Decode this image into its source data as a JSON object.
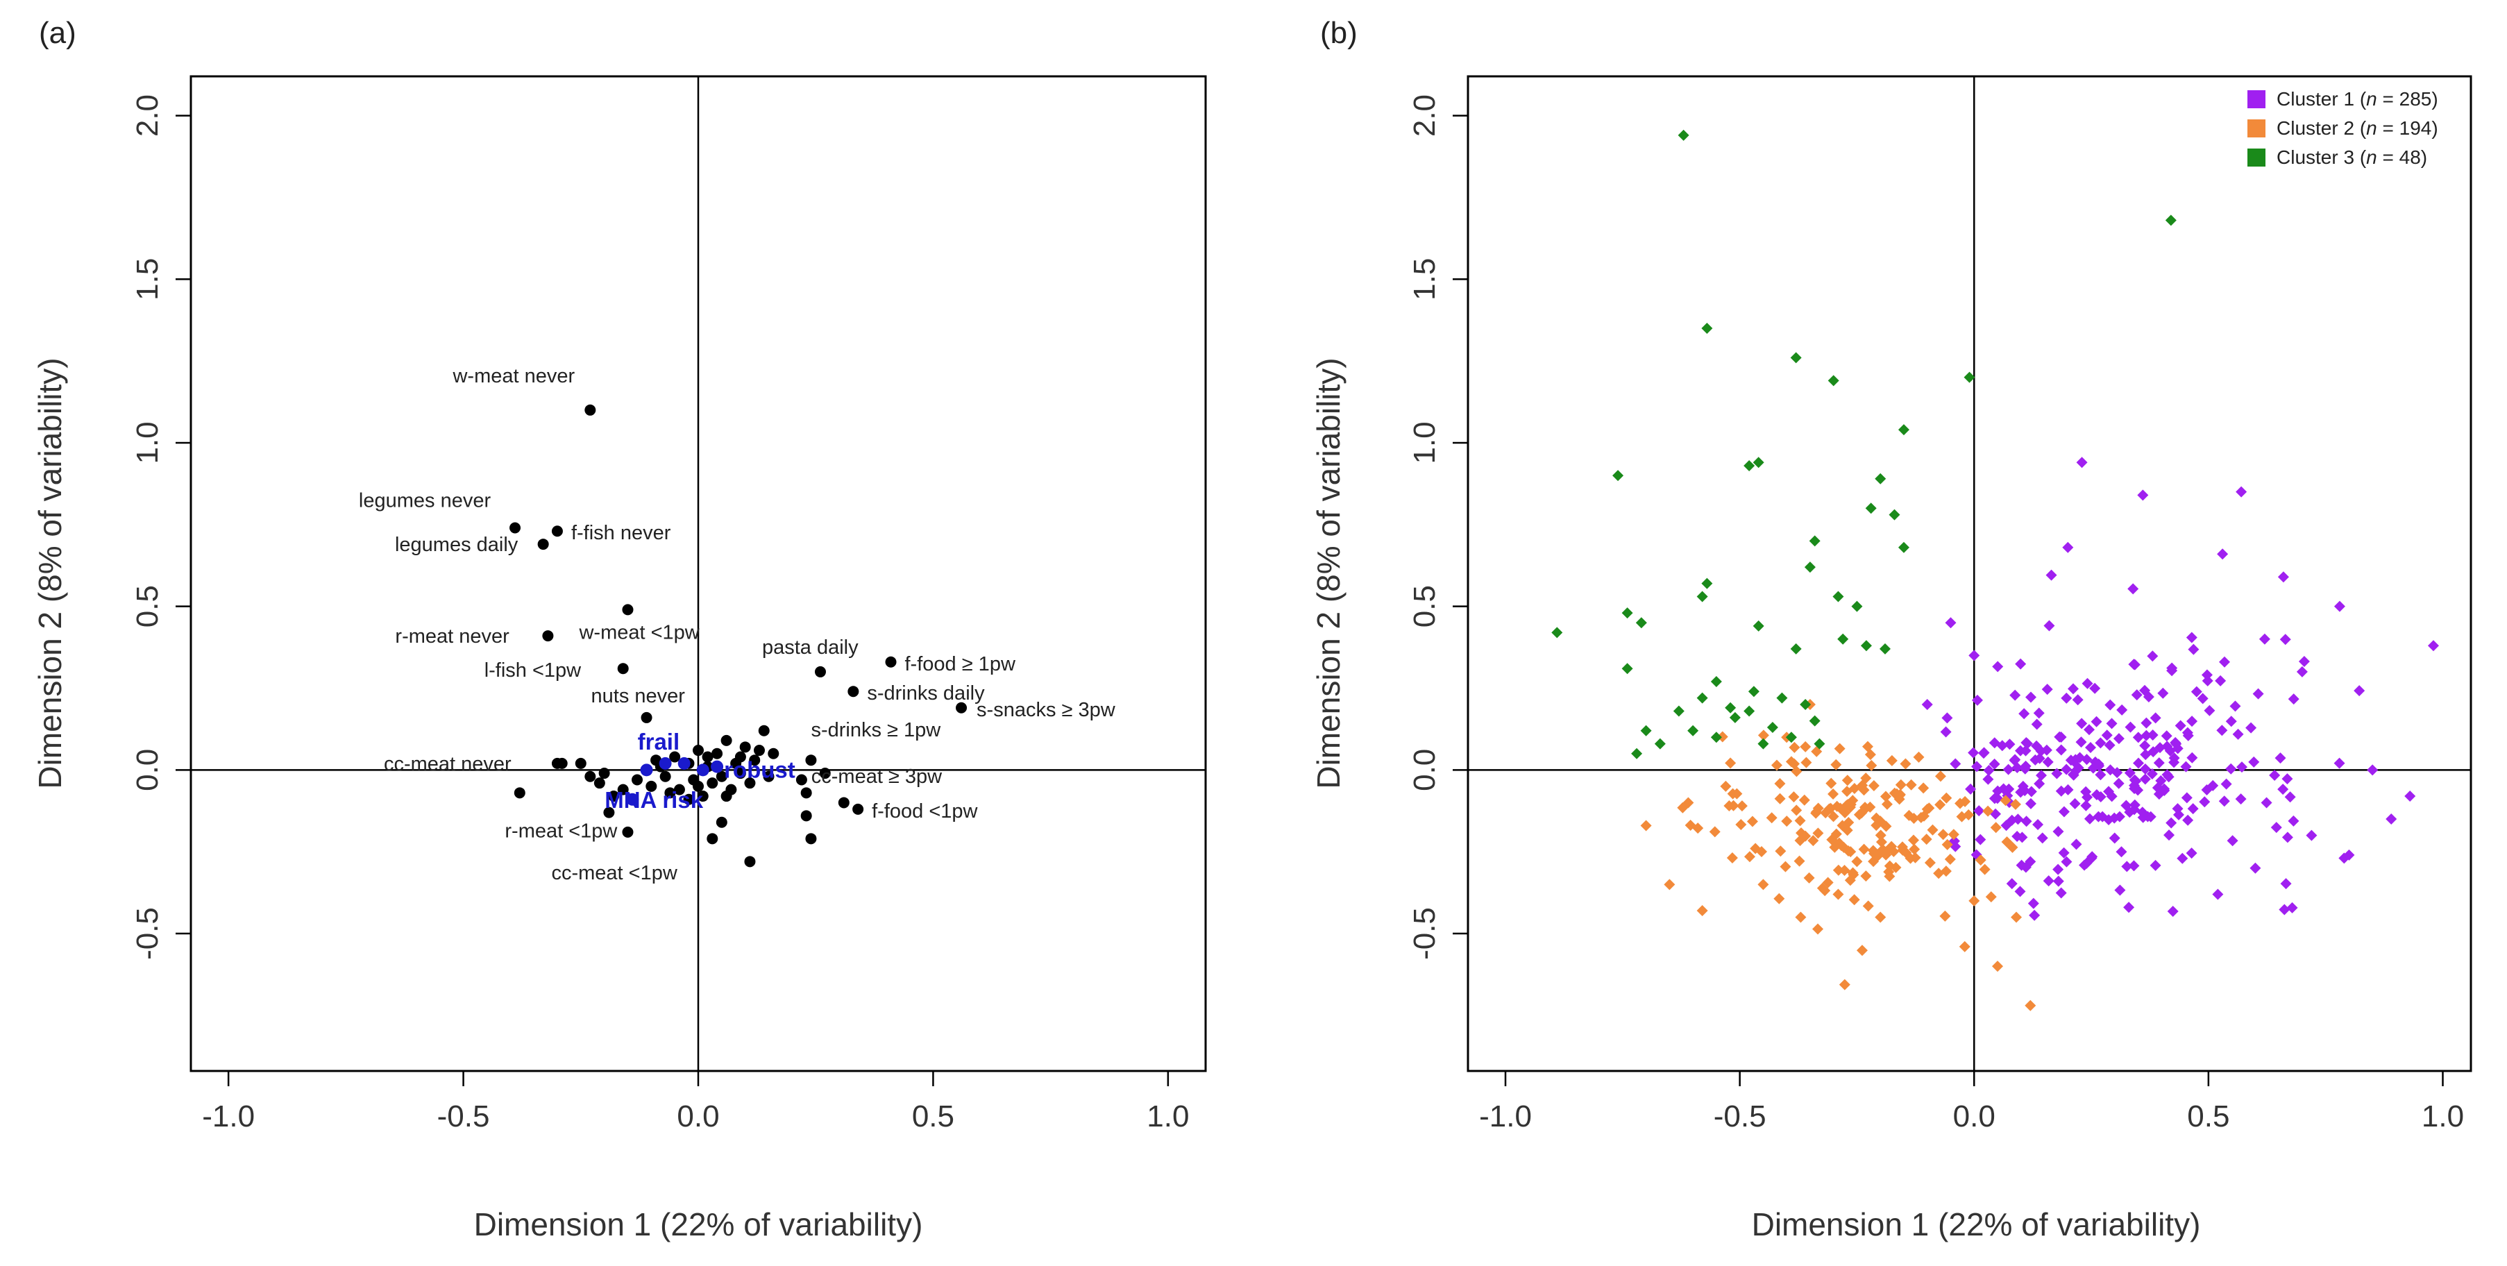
{
  "chart_data": [
    {
      "type": "scatter",
      "panel_label": "(a)",
      "xlabel": "Dimension 1 (22% of variability)",
      "ylabel": "Dimension 2 (8% of variability)",
      "xlim": [
        -1.08,
        1.08
      ],
      "ylim": [
        -0.92,
        2.12
      ],
      "x_ticks": [
        -1.0,
        -0.5,
        0.0,
        0.5,
        1.0
      ],
      "x_tick_labels": [
        "-1.0",
        "-0.5",
        "0.0",
        "0.5",
        "1.0"
      ],
      "y_ticks": [
        -0.5,
        0.0,
        0.5,
        1.0,
        1.5,
        2.0
      ],
      "y_tick_labels": [
        "-0.5",
        "0.0",
        "0.5",
        "1.0",
        "1.5",
        "2.0"
      ],
      "reference_lines": {
        "x": 0,
        "y": 0
      },
      "labeled_points": [
        {
          "label": "w-meat never",
          "x": -0.23,
          "y": 1.1
        },
        {
          "label": "legumes never",
          "x": -0.39,
          "y": 0.74
        },
        {
          "label": "legumes daily",
          "x": -0.33,
          "y": 0.69
        },
        {
          "label": "f-fish never",
          "x": -0.3,
          "y": 0.73
        },
        {
          "label": "w-meat <1pw",
          "x": -0.15,
          "y": 0.49
        },
        {
          "label": "r-meat never",
          "x": -0.32,
          "y": 0.41
        },
        {
          "label": "l-fish <1pw",
          "x": -0.16,
          "y": 0.31
        },
        {
          "label": "nuts never",
          "x": -0.11,
          "y": 0.16
        },
        {
          "label": "pasta daily",
          "x": 0.26,
          "y": 0.3
        },
        {
          "label": "f-food ≥ 1pw",
          "x": 0.41,
          "y": 0.33
        },
        {
          "label": "s-drinks daily",
          "x": 0.33,
          "y": 0.24
        },
        {
          "label": "s-snacks ≥ 3pw",
          "x": 0.56,
          "y": 0.19
        },
        {
          "label": "s-drinks ≥ 1pw",
          "x": 0.24,
          "y": 0.03
        },
        {
          "label": "cc-meat ≥ 3pw",
          "x": 0.27,
          "y": -0.01
        },
        {
          "label": "f-food <1pw",
          "x": 0.34,
          "y": -0.12
        },
        {
          "label": "cc-meat never",
          "x": -0.3,
          "y": 0.02
        },
        {
          "label": "r-meat <1pw",
          "x": -0.19,
          "y": -0.13
        },
        {
          "label": "cc-meat <1pw",
          "x": -0.15,
          "y": -0.19
        }
      ],
      "highlight_points": [
        {
          "label": "frail",
          "x": -0.07,
          "y": 0.02
        },
        {
          "label": "robust",
          "x": 0.04,
          "y": 0.01
        },
        {
          "label": "MNA risk",
          "x": -0.14,
          "y": -0.09
        },
        {
          "label": "",
          "x": -0.11,
          "y": 0.0
        },
        {
          "label": "",
          "x": -0.03,
          "y": 0.02
        },
        {
          "label": "",
          "x": 0.01,
          "y": 0.0
        }
      ],
      "other_points": [
        {
          "x": -0.38,
          "y": -0.07
        },
        {
          "x": -0.29,
          "y": 0.02
        },
        {
          "x": -0.25,
          "y": 0.02
        },
        {
          "x": -0.23,
          "y": -0.02
        },
        {
          "x": -0.21,
          "y": -0.04
        },
        {
          "x": -0.2,
          "y": -0.01
        },
        {
          "x": -0.18,
          "y": -0.08
        },
        {
          "x": -0.16,
          "y": -0.06
        },
        {
          "x": -0.13,
          "y": -0.03
        },
        {
          "x": -0.1,
          "y": -0.05
        },
        {
          "x": -0.09,
          "y": 0.03
        },
        {
          "x": -0.07,
          "y": -0.02
        },
        {
          "x": -0.05,
          "y": 0.04
        },
        {
          "x": -0.04,
          "y": -0.06
        },
        {
          "x": -0.02,
          "y": 0.02
        },
        {
          "x": -0.01,
          "y": -0.03
        },
        {
          "x": 0.0,
          "y": 0.06
        },
        {
          "x": 0.01,
          "y": -0.08
        },
        {
          "x": 0.02,
          "y": 0.01
        },
        {
          "x": 0.03,
          "y": -0.04
        },
        {
          "x": 0.04,
          "y": 0.05
        },
        {
          "x": 0.05,
          "y": -0.02
        },
        {
          "x": 0.06,
          "y": 0.09
        },
        {
          "x": 0.07,
          "y": -0.06
        },
        {
          "x": 0.08,
          "y": 0.02
        },
        {
          "x": 0.09,
          "y": -0.01
        },
        {
          "x": 0.1,
          "y": 0.07
        },
        {
          "x": 0.11,
          "y": -0.04
        },
        {
          "x": 0.12,
          "y": 0.03
        },
        {
          "x": 0.13,
          "y": 0.06
        },
        {
          "x": 0.14,
          "y": 0.12
        },
        {
          "x": 0.15,
          "y": -0.02
        },
        {
          "x": 0.16,
          "y": 0.05
        },
        {
          "x": 0.03,
          "y": -0.21
        },
        {
          "x": 0.05,
          "y": -0.16
        },
        {
          "x": 0.11,
          "y": -0.28
        },
        {
          "x": 0.23,
          "y": -0.07
        },
        {
          "x": 0.23,
          "y": -0.14
        },
        {
          "x": 0.24,
          "y": -0.21
        },
        {
          "x": 0.31,
          "y": -0.1
        },
        {
          "x": 0.22,
          "y": -0.03
        },
        {
          "x": -0.06,
          "y": -0.07
        },
        {
          "x": -0.02,
          "y": -0.09
        },
        {
          "x": 0.0,
          "y": -0.05
        },
        {
          "x": 0.02,
          "y": 0.04
        },
        {
          "x": -0.08,
          "y": 0.01
        },
        {
          "x": 0.06,
          "y": -0.08
        },
        {
          "x": 0.09,
          "y": 0.04
        }
      ]
    },
    {
      "type": "scatter",
      "panel_label": "(b)",
      "xlabel": "Dimension 1 (22% of variability)",
      "ylabel": "Dimension 2 (8% of variability)",
      "xlim": [
        -1.08,
        1.06
      ],
      "ylim": [
        -0.92,
        2.12
      ],
      "x_ticks": [
        -1.0,
        -0.5,
        0.0,
        0.5,
        1.0
      ],
      "x_tick_labels": [
        "-1.0",
        "-0.5",
        "0.0",
        "0.5",
        "1.0"
      ],
      "y_ticks": [
        -0.5,
        0.0,
        0.5,
        1.0,
        1.5,
        2.0
      ],
      "y_tick_labels": [
        "-0.5",
        "0.0",
        "0.5",
        "1.0",
        "1.5",
        "2.0"
      ],
      "reference_lines": {
        "x": 0,
        "y": 0
      },
      "legend_position": "top-right",
      "series": [
        {
          "name": "Cluster 1",
          "legend_prefix": "Cluster 1 (",
          "legend_n_label": "n",
          "legend_suffix": " = 285)",
          "color": "#a020f0",
          "count": 285,
          "x_range": [
            -0.12,
            0.98
          ],
          "y_range": [
            -0.45,
            0.95
          ],
          "points": [
            {
              "x": 0.98,
              "y": 0.38
            },
            {
              "x": 0.78,
              "y": 0.5
            },
            {
              "x": 0.57,
              "y": 0.85
            },
            {
              "x": 0.23,
              "y": 0.94
            },
            {
              "x": 0.2,
              "y": 0.68
            },
            {
              "x": 0.36,
              "y": 0.84
            },
            {
              "x": 0.66,
              "y": 0.59
            },
            {
              "x": 0.53,
              "y": 0.66
            },
            {
              "x": 0.93,
              "y": -0.08
            },
            {
              "x": 0.89,
              "y": -0.15
            },
            {
              "x": 0.8,
              "y": -0.26
            },
            {
              "x": 0.72,
              "y": -0.2
            },
            {
              "x": 0.6,
              "y": -0.3
            },
            {
              "x": 0.52,
              "y": -0.38
            },
            {
              "x": 0.33,
              "y": -0.42
            },
            {
              "x": 0.18,
              "y": -0.34
            },
            {
              "x": 0.12,
              "y": -0.28
            },
            {
              "x": 0.85,
              "y": 0.0
            },
            {
              "x": 0.7,
              "y": 0.3
            },
            {
              "x": 0.62,
              "y": 0.4
            },
            {
              "x": -0.05,
              "y": 0.45
            },
            {
              "x": 0.0,
              "y": 0.35
            },
            {
              "x": -0.1,
              "y": 0.2
            }
          ]
        },
        {
          "name": "Cluster 2",
          "legend_prefix": "Cluster 2 (",
          "legend_n_label": "n",
          "legend_suffix": " = 194)",
          "color": "#f28a3a",
          "count": 194,
          "x_range": [
            -0.72,
            0.25
          ],
          "y_range": [
            -0.72,
            0.25
          ],
          "points": [
            {
              "x": 0.12,
              "y": -0.72
            },
            {
              "x": 0.05,
              "y": -0.6
            },
            {
              "x": -0.02,
              "y": -0.54
            },
            {
              "x": -0.58,
              "y": -0.43
            },
            {
              "x": -0.65,
              "y": -0.35
            },
            {
              "x": -0.7,
              "y": -0.17
            },
            {
              "x": -0.61,
              "y": -0.1
            },
            {
              "x": -0.53,
              "y": -0.05
            },
            {
              "x": -0.45,
              "y": -0.35
            },
            {
              "x": -0.37,
              "y": -0.45
            },
            {
              "x": -0.29,
              "y": -0.38
            },
            {
              "x": -0.35,
              "y": 0.2
            },
            {
              "x": -0.4,
              "y": 0.1
            },
            {
              "x": -0.2,
              "y": -0.45
            },
            {
              "x": 0.0,
              "y": -0.4
            },
            {
              "x": 0.09,
              "y": -0.45
            },
            {
              "x": -0.1,
              "y": -0.12
            },
            {
              "x": 0.07,
              "y": -0.22
            }
          ]
        },
        {
          "name": "Cluster 3",
          "legend_prefix": "Cluster 3 (",
          "legend_n_label": "n",
          "legend_suffix": " = 48)",
          "color": "#1a8a1a",
          "count": 48,
          "x_range": [
            -0.89,
            0.42
          ],
          "y_range": [
            0.05,
            1.94
          ],
          "points": [
            {
              "x": -0.62,
              "y": 1.94
            },
            {
              "x": 0.42,
              "y": 1.68
            },
            {
              "x": -0.57,
              "y": 1.35
            },
            {
              "x": -0.38,
              "y": 1.26
            },
            {
              "x": -0.3,
              "y": 1.19
            },
            {
              "x": -0.01,
              "y": 1.2
            },
            {
              "x": -0.15,
              "y": 1.04
            },
            {
              "x": -0.48,
              "y": 0.93
            },
            {
              "x": -0.46,
              "y": 0.94
            },
            {
              "x": -0.76,
              "y": 0.9
            },
            {
              "x": -0.2,
              "y": 0.89
            },
            {
              "x": -0.17,
              "y": 0.78
            },
            {
              "x": -0.22,
              "y": 0.8
            },
            {
              "x": -0.34,
              "y": 0.7
            },
            {
              "x": -0.15,
              "y": 0.68
            },
            {
              "x": -0.35,
              "y": 0.62
            },
            {
              "x": -0.57,
              "y": 0.57
            },
            {
              "x": -0.58,
              "y": 0.53
            },
            {
              "x": -0.74,
              "y": 0.48
            },
            {
              "x": -0.71,
              "y": 0.45
            },
            {
              "x": -0.29,
              "y": 0.53
            },
            {
              "x": -0.25,
              "y": 0.5
            },
            {
              "x": -0.46,
              "y": 0.44
            },
            {
              "x": -0.89,
              "y": 0.42
            },
            {
              "x": -0.28,
              "y": 0.4
            },
            {
              "x": -0.23,
              "y": 0.38
            },
            {
              "x": -0.19,
              "y": 0.37
            },
            {
              "x": -0.38,
              "y": 0.37
            },
            {
              "x": -0.74,
              "y": 0.31
            },
            {
              "x": -0.55,
              "y": 0.27
            },
            {
              "x": -0.47,
              "y": 0.24
            },
            {
              "x": -0.41,
              "y": 0.22
            },
            {
              "x": -0.52,
              "y": 0.19
            },
            {
              "x": -0.36,
              "y": 0.2
            },
            {
              "x": -0.34,
              "y": 0.15
            },
            {
              "x": -0.43,
              "y": 0.13
            },
            {
              "x": -0.51,
              "y": 0.16
            },
            {
              "x": -0.55,
              "y": 0.1
            },
            {
              "x": -0.6,
              "y": 0.12
            },
            {
              "x": -0.7,
              "y": 0.12
            },
            {
              "x": -0.72,
              "y": 0.05
            },
            {
              "x": -0.67,
              "y": 0.08
            },
            {
              "x": -0.45,
              "y": 0.08
            },
            {
              "x": -0.39,
              "y": 0.1
            },
            {
              "x": -0.33,
              "y": 0.08
            },
            {
              "x": -0.48,
              "y": 0.18
            },
            {
              "x": -0.58,
              "y": 0.22
            },
            {
              "x": -0.63,
              "y": 0.18
            }
          ]
        }
      ]
    }
  ]
}
